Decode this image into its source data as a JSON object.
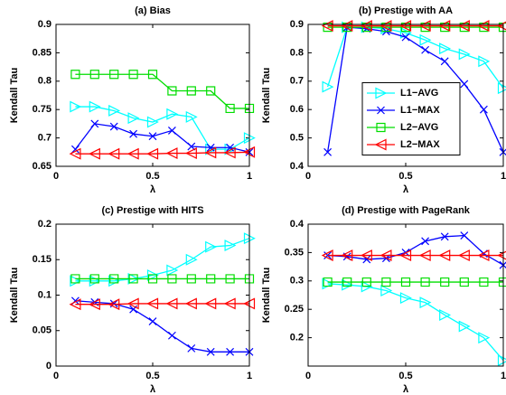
{
  "chart_data": [
    {
      "type": "line",
      "title": "(a) Bias",
      "xlabel": "λ",
      "ylabel": "Kendall Tau",
      "x": [
        0.1,
        0.2,
        0.3,
        0.4,
        0.5,
        0.6,
        0.7,
        0.8,
        0.9,
        1
      ],
      "xlim": [
        0,
        1
      ],
      "xticks": [
        0,
        0.5,
        1
      ],
      "ylim": [
        0.65,
        0.9
      ],
      "yticks": [
        0.65,
        0.7,
        0.75,
        0.8,
        0.85,
        0.9
      ],
      "series": [
        {
          "name": "L1−AVG",
          "color": "#00ffff",
          "marker": "triangle-right",
          "values": [
            0.755,
            0.755,
            0.748,
            0.735,
            0.728,
            0.742,
            0.737,
            0.68,
            0.68,
            0.7
          ]
        },
        {
          "name": "L1−MAX",
          "color": "#0000ff",
          "marker": "x",
          "values": [
            0.68,
            0.725,
            0.72,
            0.707,
            0.703,
            0.713,
            0.685,
            0.683,
            0.683,
            0.675
          ]
        },
        {
          "name": "L2−AVG",
          "color": "#00dd00",
          "marker": "square",
          "values": [
            0.812,
            0.812,
            0.812,
            0.812,
            0.812,
            0.783,
            0.783,
            0.783,
            0.752,
            0.752
          ]
        },
        {
          "name": "L2−MAX",
          "color": "#ff0000",
          "marker": "triangle-left",
          "values": [
            0.672,
            0.672,
            0.672,
            0.672,
            0.672,
            0.673,
            0.673,
            0.674,
            0.674,
            0.675
          ]
        }
      ]
    },
    {
      "type": "line",
      "title": "(b) Prestige with AA",
      "xlabel": "λ",
      "ylabel": "Kendall Tau",
      "x": [
        0.1,
        0.2,
        0.3,
        0.4,
        0.5,
        0.6,
        0.7,
        0.8,
        0.9,
        1
      ],
      "xlim": [
        0,
        1
      ],
      "xticks": [
        0,
        0.5,
        1
      ],
      "ylim": [
        0.4,
        0.9
      ],
      "yticks": [
        0.4,
        0.5,
        0.6,
        0.7,
        0.8,
        0.9
      ],
      "legend": "center",
      "series": [
        {
          "name": "L1−AVG",
          "color": "#00ffff",
          "marker": "triangle-right",
          "values": [
            0.68,
            0.89,
            0.89,
            0.885,
            0.87,
            0.845,
            0.815,
            0.795,
            0.77,
            0.675
          ]
        },
        {
          "name": "L1−MAX",
          "color": "#0000ff",
          "marker": "x",
          "values": [
            0.45,
            0.89,
            0.885,
            0.875,
            0.855,
            0.81,
            0.77,
            0.69,
            0.6,
            0.45
          ]
        },
        {
          "name": "L2−AVG",
          "color": "#00dd00",
          "marker": "square",
          "values": [
            0.89,
            0.89,
            0.89,
            0.89,
            0.89,
            0.89,
            0.89,
            0.89,
            0.89,
            0.89
          ]
        },
        {
          "name": "L2−MAX",
          "color": "#ff0000",
          "marker": "triangle-left",
          "values": [
            0.895,
            0.895,
            0.895,
            0.895,
            0.895,
            0.895,
            0.895,
            0.895,
            0.895,
            0.895
          ]
        }
      ]
    },
    {
      "type": "line",
      "title": "(c) Prestige with HITS",
      "xlabel": "λ",
      "ylabel": "Kendall Tau",
      "x": [
        0.1,
        0.2,
        0.3,
        0.4,
        0.5,
        0.6,
        0.7,
        0.8,
        0.9,
        1
      ],
      "xlim": [
        0,
        1
      ],
      "xticks": [
        0,
        0.5,
        1
      ],
      "ylim": [
        0,
        0.2
      ],
      "yticks": [
        0,
        0.05,
        0.1,
        0.15,
        0.2
      ],
      "series": [
        {
          "name": "L1−AVG",
          "color": "#00ffff",
          "marker": "triangle-right",
          "values": [
            0.12,
            0.12,
            0.12,
            0.123,
            0.128,
            0.135,
            0.15,
            0.168,
            0.17,
            0.18
          ]
        },
        {
          "name": "L1−MAX",
          "color": "#0000ff",
          "marker": "x",
          "values": [
            0.092,
            0.09,
            0.088,
            0.08,
            0.063,
            0.043,
            0.025,
            0.02,
            0.02,
            0.02
          ]
        },
        {
          "name": "L2−AVG",
          "color": "#00dd00",
          "marker": "square",
          "values": [
            0.123,
            0.123,
            0.123,
            0.123,
            0.123,
            0.123,
            0.123,
            0.123,
            0.123,
            0.123
          ]
        },
        {
          "name": "L2−MAX",
          "color": "#ff0000",
          "marker": "triangle-left",
          "values": [
            0.087,
            0.087,
            0.087,
            0.088,
            0.088,
            0.088,
            0.088,
            0.088,
            0.088,
            0.088
          ]
        }
      ]
    },
    {
      "type": "line",
      "title": "(d) Prestige with PageRank",
      "xlabel": "λ",
      "ylabel": "Kendall Tau",
      "x": [
        0.1,
        0.2,
        0.3,
        0.4,
        0.5,
        0.6,
        0.7,
        0.8,
        0.9,
        1
      ],
      "xlim": [
        0,
        1
      ],
      "xticks": [
        0,
        0.5,
        1
      ],
      "ylim": [
        0.15,
        0.4
      ],
      "yticks": [
        0.2,
        0.25,
        0.3,
        0.35,
        0.4
      ],
      "series": [
        {
          "name": "L1−AVG",
          "color": "#00ffff",
          "marker": "triangle-right",
          "values": [
            0.295,
            0.293,
            0.29,
            0.283,
            0.27,
            0.262,
            0.24,
            0.22,
            0.2,
            0.16
          ]
        },
        {
          "name": "L1−MAX",
          "color": "#0000ff",
          "marker": "x",
          "values": [
            0.345,
            0.343,
            0.338,
            0.34,
            0.35,
            0.37,
            0.378,
            0.38,
            0.348,
            0.328
          ]
        },
        {
          "name": "L2−AVG",
          "color": "#00dd00",
          "marker": "square",
          "values": [
            0.298,
            0.298,
            0.298,
            0.298,
            0.298,
            0.298,
            0.298,
            0.298,
            0.298,
            0.298
          ]
        },
        {
          "name": "L2−MAX",
          "color": "#ff0000",
          "marker": "triangle-left",
          "values": [
            0.345,
            0.345,
            0.345,
            0.345,
            0.345,
            0.345,
            0.345,
            0.345,
            0.345,
            0.345
          ]
        }
      ]
    }
  ]
}
